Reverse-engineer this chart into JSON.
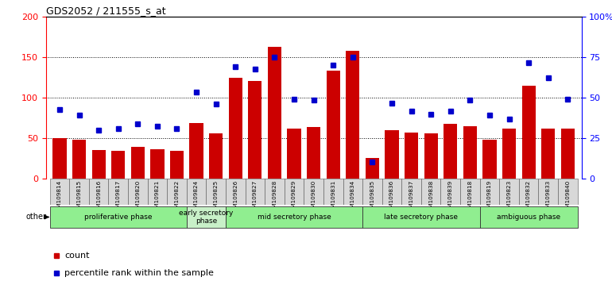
{
  "title": "GDS2052 / 211555_s_at",
  "samples": [
    "GSM109814",
    "GSM109815",
    "GSM109816",
    "GSM109817",
    "GSM109820",
    "GSM109821",
    "GSM109822",
    "GSM109824",
    "GSM109825",
    "GSM109826",
    "GSM109827",
    "GSM109828",
    "GSM109829",
    "GSM109830",
    "GSM109831",
    "GSM109834",
    "GSM109835",
    "GSM109836",
    "GSM109837",
    "GSM109838",
    "GSM109839",
    "GSM109818",
    "GSM109819",
    "GSM109823",
    "GSM109832",
    "GSM109833",
    "GSM109840"
  ],
  "counts": [
    50,
    48,
    35,
    34,
    39,
    36,
    34,
    69,
    56,
    125,
    121,
    163,
    62,
    64,
    133,
    158,
    25,
    60,
    57,
    56,
    68,
    65,
    48,
    62,
    115,
    62,
    62
  ],
  "percentiles_left_scale": [
    85,
    78,
    60,
    62,
    68,
    65,
    62,
    107,
    92,
    138,
    135,
    150,
    98,
    97,
    140,
    150,
    20,
    93,
    83,
    79,
    83,
    97,
    78,
    73,
    143,
    125,
    98
  ],
  "phases": [
    {
      "label": "proliferative phase",
      "start": 0,
      "end": 6,
      "color": "#90ee90"
    },
    {
      "label": "early secretory\nphase",
      "start": 7,
      "end": 8,
      "color": "#c8f0c8"
    },
    {
      "label": "mid secretory phase",
      "start": 9,
      "end": 15,
      "color": "#90ee90"
    },
    {
      "label": "late secretory phase",
      "start": 16,
      "end": 21,
      "color": "#90ee90"
    },
    {
      "label": "ambiguous phase",
      "start": 22,
      "end": 26,
      "color": "#90ee90"
    }
  ],
  "bar_color": "#cc0000",
  "dot_color": "#0000cc",
  "ylim_left": [
    0,
    200
  ],
  "yticks_left": [
    0,
    50,
    100,
    150,
    200
  ],
  "yticks_right_pos": [
    0,
    50,
    100,
    150,
    200
  ],
  "ytick_labels_right": [
    "0",
    "25",
    "50",
    "75",
    "100%"
  ],
  "plot_bg_color": "#ffffff",
  "tick_bg_color": "#d8d8d8"
}
